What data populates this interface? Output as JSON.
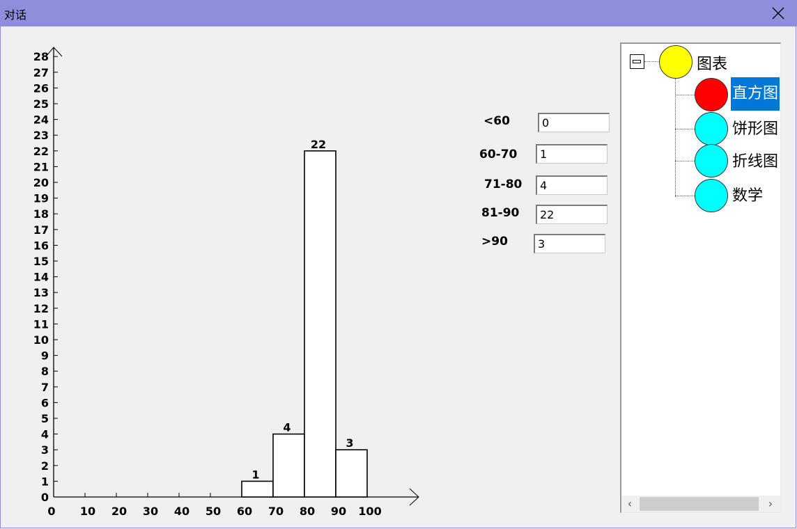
{
  "window": {
    "title": "对话"
  },
  "chart_data": {
    "type": "bar",
    "title": "",
    "xlabel": "",
    "ylabel": "",
    "x_ticks": [
      0,
      10,
      20,
      30,
      40,
      50,
      60,
      70,
      80,
      90,
      100
    ],
    "y_ticks": [
      0,
      1,
      2,
      3,
      4,
      5,
      6,
      7,
      8,
      9,
      10,
      11,
      12,
      13,
      14,
      15,
      16,
      17,
      18,
      19,
      20,
      21,
      22,
      23,
      24,
      25,
      26,
      27,
      28
    ],
    "xlim": [
      0,
      100
    ],
    "ylim": [
      0,
      28
    ],
    "bars": [
      {
        "x_start": 60,
        "x_end": 70,
        "value": 1
      },
      {
        "x_start": 70,
        "x_end": 80,
        "value": 4
      },
      {
        "x_start": 80,
        "x_end": 90,
        "value": 22
      },
      {
        "x_start": 90,
        "x_end": 100,
        "value": 3
      }
    ],
    "data_labels": [
      "1",
      "4",
      "22",
      "3"
    ],
    "grid": false,
    "colors": {
      "bar_fill": "#ffffff",
      "bar_stroke": "#000000"
    }
  },
  "ranges": [
    {
      "label": "<60",
      "value": "0"
    },
    {
      "label": "60-70",
      "value": "1"
    },
    {
      "label": "71-80",
      "value": "4"
    },
    {
      "label": "81-90",
      "value": "22"
    },
    {
      "label": ">90",
      "value": "3"
    }
  ],
  "tree": {
    "root": {
      "label": "图表",
      "color": "#ffff00"
    },
    "children": [
      {
        "label": "直方图",
        "color": "#ff0000",
        "selected": true
      },
      {
        "label": "饼形图",
        "color": "#00ffff",
        "selected": false
      },
      {
        "label": "折线图",
        "color": "#00ffff",
        "selected": false
      },
      {
        "label": "数学",
        "color": "#00ffff",
        "selected": false
      }
    ],
    "selection_color": "#0078d7"
  }
}
